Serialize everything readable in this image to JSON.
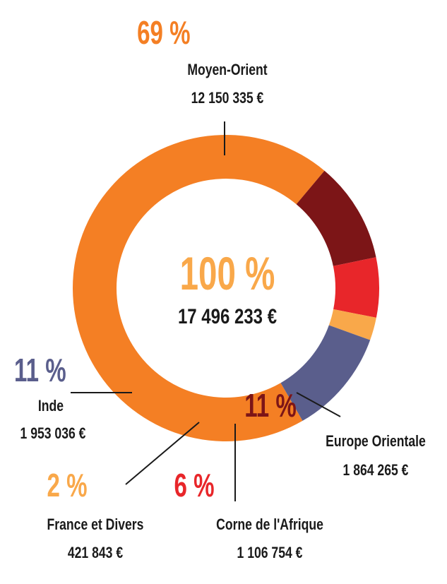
{
  "chart_data": {
    "type": "pie",
    "variant": "donut",
    "total": {
      "label": "100 %",
      "amount": "17 496 233 €",
      "value": 17496233,
      "color": "#F9A84A"
    },
    "slices": [
      {
        "name": "Moyen-Orient",
        "percent_label": "69 %",
        "amount_label": "12 150 335 €",
        "value": 12150335,
        "color": "#F47F24",
        "label_color": "#F47F24"
      },
      {
        "name": "Europe Orientale",
        "percent_label": "11 %",
        "amount_label": "1 864 265 €",
        "value": 1864265,
        "color": "#7C1517",
        "label_color": "#7C1517"
      },
      {
        "name": "Corne de l'Afrique",
        "percent_label": "6 %",
        "amount_label": "1 106 754 €",
        "value": 1106754,
        "color": "#E8262A",
        "label_color": "#E8262A"
      },
      {
        "name": "France et Divers",
        "percent_label": "2 %",
        "amount_label": "421 843 €",
        "value": 421843,
        "color": "#F9A84A",
        "label_color": "#F9A84A"
      },
      {
        "name": "Inde",
        "percent_label": "11 %",
        "amount_label": "1 953 036 €",
        "value": 1953036,
        "color": "#5A5E8C",
        "label_color": "#5A5E8C"
      }
    ]
  }
}
